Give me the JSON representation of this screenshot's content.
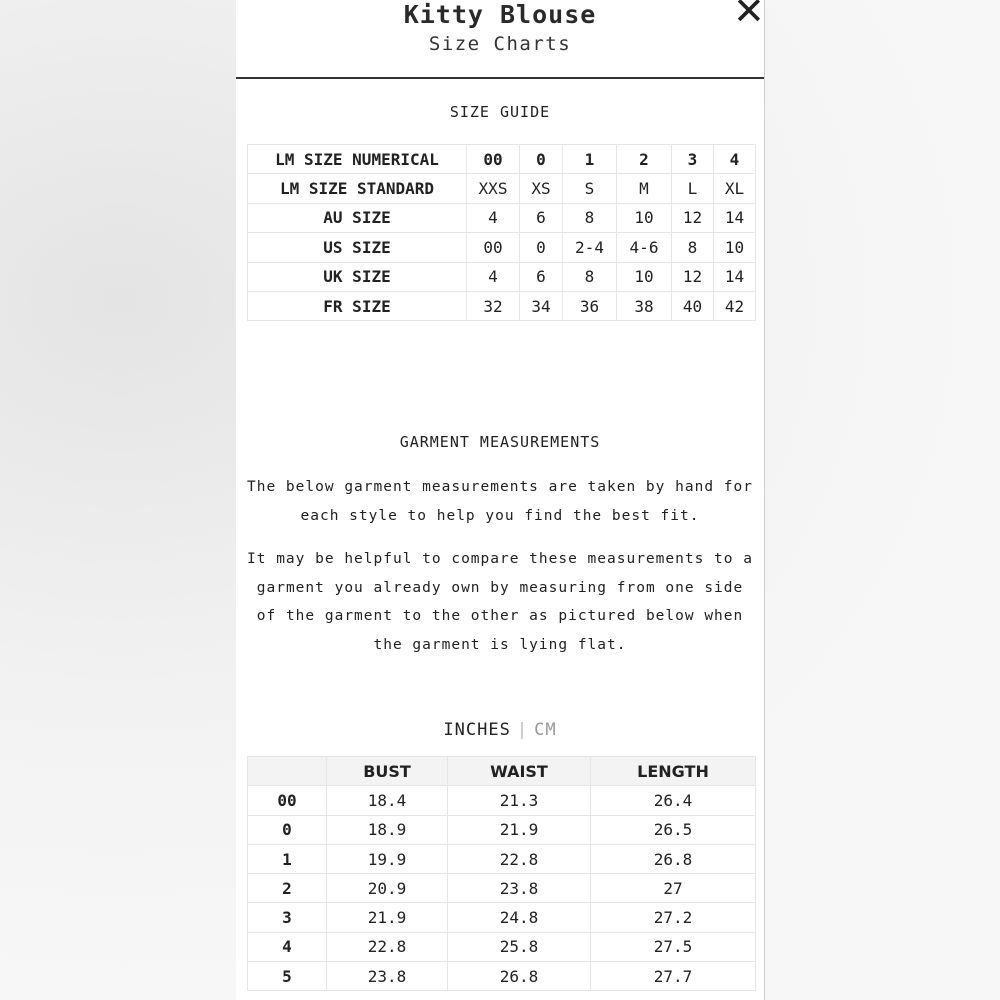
{
  "header": {
    "title": "Kitty Blouse",
    "subtitle": "Size Charts",
    "close_icon": "close-icon"
  },
  "size_guide": {
    "heading": "SIZE GUIDE",
    "rows": [
      [
        "LM SIZE NUMERICAL",
        "00",
        "0",
        "1",
        "2",
        "3",
        "4"
      ],
      [
        "LM SIZE STANDARD",
        "XXS",
        "XS",
        "S",
        "M",
        "L",
        "XL"
      ],
      [
        "AU SIZE",
        "4",
        "6",
        "8",
        "10",
        "12",
        "14"
      ],
      [
        "US SIZE",
        "00",
        "0",
        "2-4",
        "4-6",
        "8",
        "10"
      ],
      [
        "UK SIZE",
        "4",
        "6",
        "8",
        "10",
        "12",
        "14"
      ],
      [
        "FR SIZE",
        "32",
        "34",
        "36",
        "38",
        "40",
        "42"
      ]
    ]
  },
  "garment": {
    "heading": "GARMENT MEASUREMENTS",
    "para1": "The below garment measurements are taken by hand for each style to help you find the best fit.",
    "para2": "It may be helpful to compare these measurements to a garment you already own by measuring from one side of the garment to the other as pictured below when the garment is lying flat."
  },
  "units": {
    "active": "INCHES",
    "separator": "|",
    "inactive": "CM"
  },
  "measurements": {
    "columns": [
      "",
      "BUST",
      "WAIST",
      "LENGTH"
    ],
    "rows": [
      [
        "00",
        "18.4",
        "21.3",
        "26.4"
      ],
      [
        "0",
        "18.9",
        "21.9",
        "26.5"
      ],
      [
        "1",
        "19.9",
        "22.8",
        "26.8"
      ],
      [
        "2",
        "20.9",
        "23.8",
        "27"
      ],
      [
        "3",
        "21.9",
        "24.8",
        "27.2"
      ],
      [
        "4",
        "22.8",
        "25.8",
        "27.5"
      ],
      [
        "5",
        "23.8",
        "26.8",
        "27.7"
      ]
    ]
  }
}
